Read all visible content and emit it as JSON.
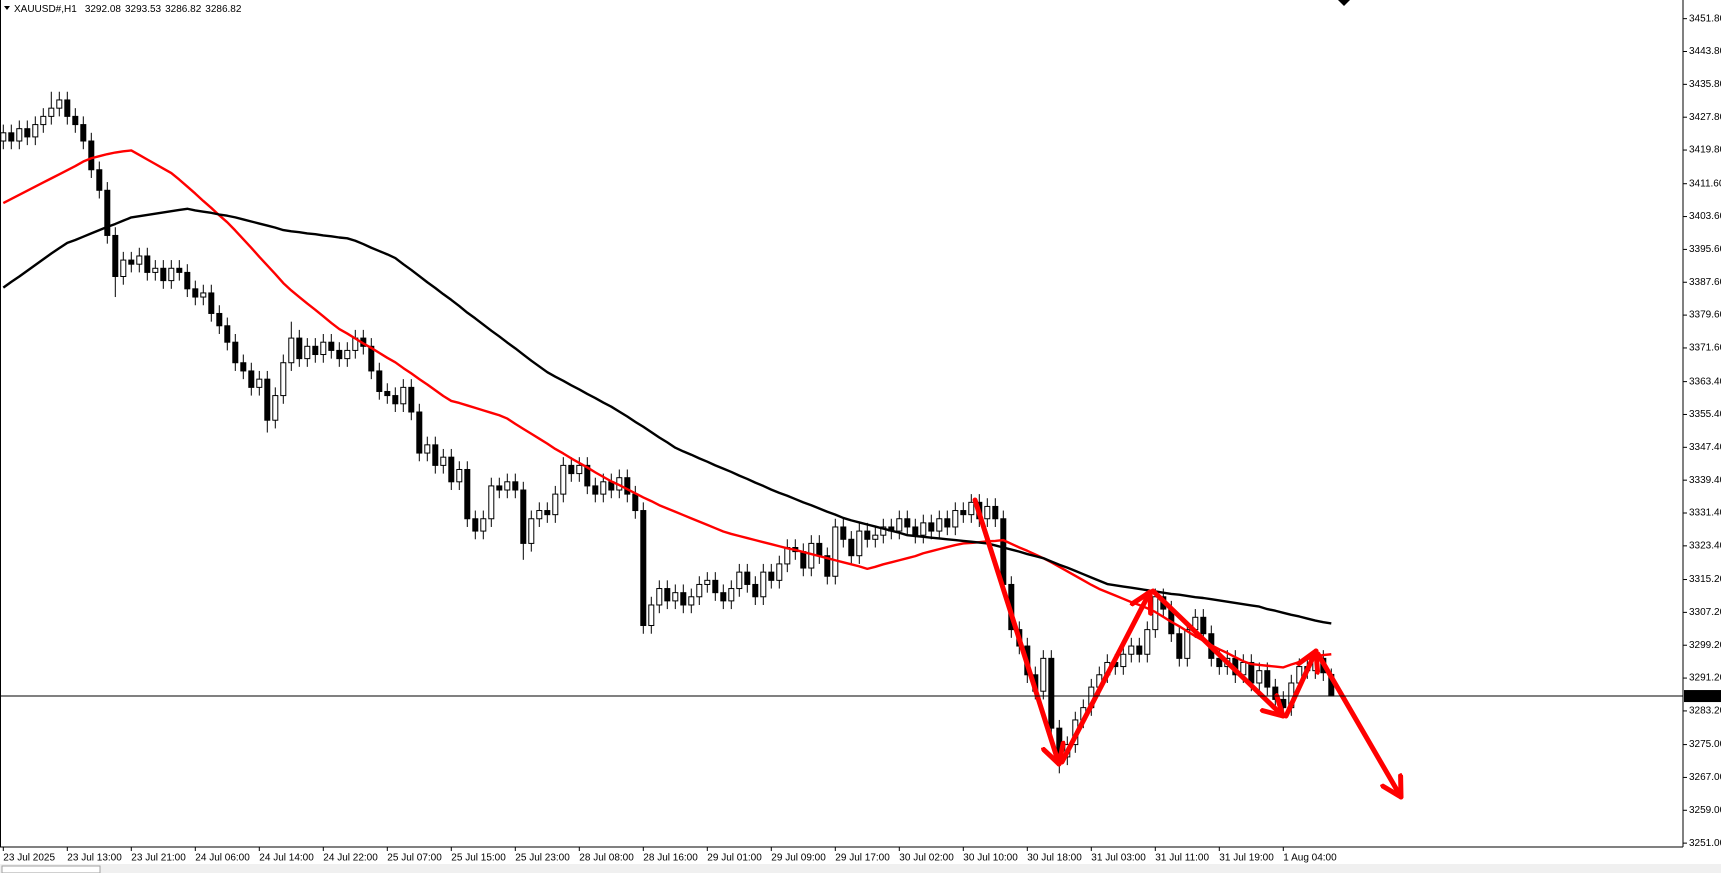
{
  "chart_data": {
    "type": "candlestick",
    "title": "XAUUSD#,H1",
    "header_values": [
      3292.08,
      3293.53,
      3286.82,
      3286.82
    ],
    "categories": [
      "23 Jul 2025",
      null,
      null,
      null,
      null,
      null,
      null,
      null,
      "23 Jul 13:00",
      null,
      null,
      null,
      null,
      null,
      null,
      null,
      "23 Jul 21:00",
      null,
      null,
      null,
      null,
      null,
      null,
      null,
      "24 Jul 06:00",
      null,
      null,
      null,
      null,
      null,
      null,
      null,
      "24 Jul 14:00",
      null,
      null,
      null,
      null,
      null,
      null,
      null,
      "24 Jul 22:00",
      null,
      null,
      null,
      null,
      null,
      null,
      null,
      "25 Jul 07:00",
      null,
      null,
      null,
      null,
      null,
      null,
      null,
      "25 Jul 15:00",
      null,
      null,
      null,
      null,
      null,
      null,
      null,
      "25 Jul 23:00",
      null,
      null,
      null,
      null,
      null,
      null,
      null,
      "28 Jul 08:00",
      null,
      null,
      null,
      null,
      null,
      null,
      null,
      "28 Jul 16:00",
      null,
      null,
      null,
      null,
      null,
      null,
      null,
      "29 Jul 01:00",
      null,
      null,
      null,
      null,
      null,
      null,
      null,
      "29 Jul 09:00",
      null,
      null,
      null,
      null,
      null,
      null,
      null,
      "29 Jul 17:00",
      null,
      null,
      null,
      null,
      null,
      null,
      null,
      "30 Jul 02:00",
      null,
      null,
      null,
      null,
      null,
      null,
      null,
      "30 Jul 10:00",
      null,
      null,
      null,
      null,
      null,
      null,
      null,
      "30 Jul 18:00",
      null,
      null,
      null,
      null,
      null,
      null,
      null,
      "31 Jul 03:00",
      null,
      null,
      null,
      null,
      null,
      null,
      null,
      "31 Jul 11:00",
      null,
      null,
      null,
      null,
      null,
      null,
      null,
      "31 Jul 19:00",
      null,
      null,
      null,
      null,
      null,
      null,
      null,
      "1 Aug 04:00",
      null,
      null,
      null,
      null,
      null,
      null
    ],
    "open": [
      3422,
      3424,
      3422,
      3425,
      3423,
      3426,
      3428,
      3430,
      3432,
      3428,
      3426,
      3422,
      3415,
      3410,
      3399,
      3389,
      3393,
      3392,
      3394,
      3390,
      3391,
      3388,
      3391,
      3390,
      3386,
      3384,
      3385,
      3380,
      3377,
      3373,
      3368,
      3366,
      3362,
      3364,
      3354,
      3360,
      3368,
      3374,
      3369,
      3372,
      3370,
      3373,
      3371,
      3369,
      3371,
      3374,
      3372,
      3366,
      3361,
      3360,
      3358,
      3362,
      3356,
      3346,
      3348,
      3343,
      3345,
      3339,
      3342,
      3330,
      3327,
      3330,
      3338,
      3337,
      3339,
      3337,
      3324,
      3330,
      3332,
      3331,
      3336,
      3343,
      3341,
      3343,
      3338,
      3336,
      3339,
      3337,
      3340,
      3336,
      3332,
      3304,
      3309,
      3313,
      3310,
      3312,
      3309,
      3311,
      3314,
      3315,
      3312,
      3310,
      3313,
      3317,
      3314,
      3311,
      3317,
      3315,
      3319,
      3323,
      3322,
      3318,
      3324,
      3321,
      3316,
      3328,
      3325,
      3321,
      3327,
      3325,
      3326,
      3328,
      3327,
      3330,
      3328,
      3326,
      3329,
      3327,
      3330,
      3328,
      3332,
      3331,
      3334,
      3330,
      3333,
      3330,
      3314,
      3303,
      3299,
      3292,
      3288,
      3296,
      3279,
      3272,
      3275,
      3281,
      3284,
      3289,
      3292,
      3295,
      3294,
      3297,
      3299,
      3297,
      3303,
      3311,
      3308,
      3302,
      3296,
      3303,
      3306,
      3302,
      3296,
      3294,
      3296,
      3292,
      3295,
      3290,
      3293,
      3289,
      3286,
      3284,
      3290,
      3294,
      3293,
      3296,
      3292.08
    ],
    "high": [
      3426,
      3426,
      3427,
      3427,
      3428,
      3430,
      3434,
      3434,
      3434,
      3430,
      3428,
      3424,
      3417,
      3412,
      3401,
      3395,
      3395,
      3396,
      3396,
      3393,
      3393,
      3393,
      3393,
      3392,
      3388,
      3387,
      3387,
      3382,
      3379,
      3375,
      3370,
      3368,
      3366,
      3366,
      3362,
      3370,
      3378,
      3376,
      3374,
      3374,
      3375,
      3375,
      3373,
      3373,
      3376,
      3376,
      3374,
      3368,
      3363,
      3362,
      3364,
      3364,
      3358,
      3350,
      3350,
      3347,
      3347,
      3344,
      3344,
      3332,
      3332,
      3340,
      3340,
      3341,
      3341,
      3339,
      3332,
      3334,
      3334,
      3338,
      3345,
      3345,
      3345,
      3345,
      3340,
      3341,
      3341,
      3342,
      3342,
      3338,
      3334,
      3311,
      3315,
      3315,
      3314,
      3314,
      3313,
      3316,
      3317,
      3317,
      3314,
      3315,
      3319,
      3319,
      3316,
      3319,
      3319,
      3321,
      3325,
      3325,
      3324,
      3326,
      3326,
      3323,
      3330,
      3330,
      3327,
      3329,
      3329,
      3328,
      3330,
      3330,
      3332,
      3332,
      3330,
      3331,
      3331,
      3332,
      3332,
      3334,
      3334,
      3336,
      3336,
      3335,
      3335,
      3332,
      3316,
      3305,
      3301,
      3294,
      3298,
      3298,
      3281,
      3277,
      3283,
      3286,
      3291,
      3294,
      3297,
      3297,
      3299,
      3301,
      3301,
      3305,
      3313,
      3313,
      3310,
      3304,
      3305,
      3308,
      3308,
      3304,
      3298,
      3298,
      3298,
      3297,
      3297,
      3295,
      3295,
      3291,
      3288,
      3292,
      3296,
      3296,
      3298,
      3298,
      3293.53
    ],
    "low": [
      3420,
      3420,
      3420,
      3421,
      3421,
      3424,
      3426,
      3428,
      3426,
      3424,
      3420,
      3413,
      3408,
      3397,
      3384,
      3387,
      3390,
      3390,
      3388,
      3388,
      3386,
      3386,
      3388,
      3384,
      3382,
      3382,
      3378,
      3375,
      3371,
      3366,
      3364,
      3360,
      3360,
      3351,
      3352,
      3358,
      3366,
      3367,
      3367,
      3368,
      3368,
      3369,
      3367,
      3367,
      3369,
      3370,
      3364,
      3359,
      3358,
      3356,
      3356,
      3354,
      3344,
      3344,
      3341,
      3341,
      3337,
      3337,
      3328,
      3325,
      3325,
      3328,
      3335,
      3335,
      3335,
      3320,
      3322,
      3328,
      3329,
      3329,
      3334,
      3339,
      3339,
      3336,
      3334,
      3334,
      3335,
      3335,
      3334,
      3330,
      3302,
      3302,
      3307,
      3308,
      3308,
      3307,
      3307,
      3309,
      3312,
      3310,
      3308,
      3308,
      3311,
      3312,
      3309,
      3309,
      3313,
      3313,
      3317,
      3320,
      3316,
      3316,
      3319,
      3314,
      3314,
      3323,
      3319,
      3319,
      3323,
      3323,
      3324,
      3325,
      3325,
      3326,
      3324,
      3324,
      3325,
      3325,
      3326,
      3326,
      3329,
      3329,
      3328,
      3328,
      3328,
      3312,
      3301,
      3297,
      3290,
      3286,
      3286,
      3277,
      3268,
      3270,
      3273,
      3279,
      3282,
      3287,
      3290,
      3292,
      3292,
      3295,
      3295,
      3295,
      3301,
      3306,
      3300,
      3294,
      3294,
      3301,
      3300,
      3294,
      3292,
      3292,
      3290,
      3290,
      3288,
      3288,
      3287,
      3284,
      3282,
      3282,
      3288,
      3291,
      3291,
      3290.5,
      3286.82
    ],
    "close": [
      3424,
      3422,
      3425,
      3423,
      3426,
      3428,
      3430,
      3432,
      3428,
      3426,
      3422,
      3415,
      3410,
      3399,
      3389,
      3393,
      3392,
      3394,
      3390,
      3391,
      3388,
      3391,
      3390,
      3386,
      3384,
      3385,
      3380,
      3377,
      3373,
      3368,
      3366,
      3362,
      3364,
      3354,
      3360,
      3368,
      3374,
      3369,
      3372,
      3370,
      3373,
      3371,
      3369,
      3371,
      3374,
      3372,
      3366,
      3361,
      3360,
      3358,
      3362,
      3356,
      3346,
      3348,
      3343,
      3345,
      3339,
      3342,
      3330,
      3327,
      3330,
      3338,
      3337,
      3339,
      3337,
      3324,
      3330,
      3332,
      3331,
      3336,
      3343,
      3341,
      3343,
      3338,
      3336,
      3339,
      3337,
      3340,
      3336,
      3332,
      3304,
      3309,
      3313,
      3310,
      3312,
      3309,
      3311,
      3314,
      3315,
      3312,
      3310,
      3313,
      3317,
      3314,
      3311,
      3317,
      3315,
      3319,
      3323,
      3322,
      3318,
      3324,
      3321,
      3316,
      3328,
      3325,
      3321,
      3327,
      3325,
      3326,
      3328,
      3327,
      3330,
      3328,
      3326,
      3329,
      3327,
      3330,
      3328,
      3332,
      3331,
      3334,
      3330,
      3333,
      3330,
      3314,
      3303,
      3299,
      3292,
      3288,
      3296,
      3279,
      3272,
      3275,
      3281,
      3284,
      3289,
      3292,
      3295,
      3294,
      3297,
      3299,
      3297,
      3303,
      3311,
      3308,
      3302,
      3296,
      3303,
      3306,
      3302,
      3296,
      3294,
      3296,
      3292,
      3295,
      3290,
      3293,
      3289,
      3286,
      3284,
      3290,
      3294,
      3293,
      3296,
      3292.5,
      3286.82
    ],
    "up_color": "#ffffff",
    "down_color": "#000000",
    "series": [
      {
        "color": "#ff0000",
        "values": [
          3406.9,
          3407.9,
          3408.9,
          3409.9,
          3410.9,
          3411.9,
          3412.9,
          3413.9,
          3414.9,
          3415.9,
          3417.0,
          3417.8,
          3418.3,
          3418.8,
          3419.2,
          3419.5,
          3419.7,
          3418.6,
          3417.5,
          3416.4,
          3415.3,
          3414.2,
          3412.6,
          3410.9,
          3409.2,
          3407.4,
          3405.7,
          3403.9,
          3402.2,
          3400.2,
          3398.1,
          3396.0,
          3393.8,
          3391.7,
          3389.6,
          3387.4,
          3385.6,
          3384.0,
          3382.4,
          3380.9,
          3379.3,
          3377.7,
          3376.2,
          3375.1,
          3373.9,
          3372.7,
          3371.6,
          3370.4,
          3369.2,
          3368.1,
          3366.7,
          3365.4,
          3364.0,
          3362.7,
          3361.3,
          3359.9,
          3358.7,
          3358.2,
          3357.6,
          3357.0,
          3356.4,
          3355.8,
          3355.2,
          3354.4,
          3353.1,
          3351.9,
          3350.7,
          3349.5,
          3348.3,
          3347.0,
          3345.9,
          3344.7,
          3343.6,
          3342.5,
          3341.3,
          3340.2,
          3339.1,
          3338.2,
          3337.2,
          3336.2,
          3335.2,
          3334.3,
          3333.3,
          3332.5,
          3331.7,
          3330.9,
          3330.1,
          3329.3,
          3328.5,
          3327.7,
          3326.9,
          3326.3,
          3325.8,
          3325.3,
          3324.8,
          3324.3,
          3323.8,
          3323.3,
          3322.8,
          3322.4,
          3321.9,
          3321.4,
          3320.9,
          3320.4,
          3319.9,
          3319.4,
          3318.9,
          3318.4,
          3317.8,
          3318.3,
          3318.9,
          3319.4,
          3319.9,
          3320.4,
          3320.9,
          3321.6,
          3322.1,
          3322.6,
          3323.1,
          3323.6,
          3324.0,
          3324.1,
          3324.3,
          3324.5,
          3324.6,
          3324.8,
          3323.9,
          3323.0,
          3322.2,
          3321.3,
          3320.4,
          3319.4,
          3318.3,
          3317.2,
          3316.1,
          3315.0,
          3313.9,
          3312.9,
          3312.1,
          3311.3,
          3310.5,
          3309.7,
          3309.0,
          3308.2,
          3307.3,
          3306.1,
          3304.9,
          3303.8,
          3302.6,
          3301.4,
          3300.3,
          3299.2,
          3298.2,
          3297.3,
          3296.3,
          3295.3,
          3294.6,
          3294.4,
          3294.2,
          3294.0,
          3293.8,
          3294.5,
          3295.1,
          3295.8,
          3296.5,
          3296.8,
          3297.0
        ]
      },
      {
        "color": "#000000",
        "values": [
          3386.3,
          3387.7,
          3389.0,
          3390.4,
          3391.8,
          3393.2,
          3394.6,
          3395.9,
          3397.2,
          3397.9,
          3398.7,
          3399.5,
          3400.3,
          3401.1,
          3401.8,
          3402.6,
          3403.4,
          3403.7,
          3404.0,
          3404.3,
          3404.6,
          3404.9,
          3405.2,
          3405.5,
          3405.1,
          3404.8,
          3404.5,
          3404.1,
          3403.8,
          3403.4,
          3402.9,
          3402.4,
          3401.9,
          3401.4,
          3400.9,
          3400.3,
          3400.0,
          3399.8,
          3399.5,
          3399.3,
          3399.0,
          3398.8,
          3398.5,
          3398.3,
          3397.7,
          3396.9,
          3396.0,
          3395.2,
          3394.4,
          3393.5,
          3392.0,
          3390.6,
          3389.1,
          3387.6,
          3386.2,
          3384.7,
          3383.3,
          3381.8,
          3380.2,
          3378.8,
          3377.3,
          3375.8,
          3374.4,
          3372.9,
          3371.5,
          3370.0,
          3368.5,
          3367.1,
          3365.7,
          3364.6,
          3363.6,
          3362.5,
          3361.5,
          3360.4,
          3359.4,
          3358.3,
          3357.3,
          3356.1,
          3354.9,
          3353.6,
          3352.4,
          3351.1,
          3349.8,
          3348.6,
          3347.3,
          3346.4,
          3345.6,
          3344.7,
          3343.9,
          3343.0,
          3342.2,
          3341.4,
          3340.5,
          3339.7,
          3338.8,
          3338.0,
          3337.1,
          3336.3,
          3335.6,
          3334.8,
          3334.0,
          3333.3,
          3332.5,
          3331.7,
          3331.0,
          3330.2,
          3329.6,
          3329.1,
          3328.6,
          3328.1,
          3327.6,
          3327.1,
          3326.6,
          3326.0,
          3325.8,
          3325.6,
          3325.4,
          3325.2,
          3325.0,
          3324.8,
          3324.6,
          3324.4,
          3324.2,
          3324.0,
          3323.5,
          3323.0,
          3322.5,
          3322.0,
          3321.4,
          3320.9,
          3320.4,
          3319.6,
          3318.8,
          3318.1,
          3317.3,
          3316.5,
          3315.7,
          3314.9,
          3314.1,
          3313.8,
          3313.5,
          3313.2,
          3312.9,
          3312.6,
          3312.3,
          3312.0,
          3311.7,
          3311.5,
          3311.2,
          3310.9,
          3310.7,
          3310.4,
          3310.1,
          3309.8,
          3309.5,
          3309.2,
          3308.9,
          3308.6,
          3308.0,
          3307.6,
          3307.1,
          3306.6,
          3306.2,
          3305.7,
          3305.2,
          3304.8,
          3304.5
        ]
      }
    ],
    "ylim": [
      3250.3,
      3456.1
    ],
    "yticks": [
      {
        "value": 3451.8,
        "label": "3451.80"
      },
      {
        "value": 3443.8,
        "label": "3443.80"
      },
      {
        "value": 3435.8,
        "label": "3435.80"
      },
      {
        "value": 3427.8,
        "label": "3427.80"
      },
      {
        "value": 3419.8,
        "label": "3419.80"
      },
      {
        "value": 3411.6,
        "label": "3411.60"
      },
      {
        "value": 3403.6,
        "label": "3403.60"
      },
      {
        "value": 3395.6,
        "label": "3395.60"
      },
      {
        "value": 3387.6,
        "label": "3387.60"
      },
      {
        "value": 3379.6,
        "label": "3379.60"
      },
      {
        "value": 3371.6,
        "label": "3371.60"
      },
      {
        "value": 3363.4,
        "label": "3363.40"
      },
      {
        "value": 3355.4,
        "label": "3355.40"
      },
      {
        "value": 3347.4,
        "label": "3347.40"
      },
      {
        "value": 3339.4,
        "label": "3339.40"
      },
      {
        "value": 3331.4,
        "label": "3331.40"
      },
      {
        "value": 3323.4,
        "label": "3323.40"
      },
      {
        "value": 3315.2,
        "label": "3315.20"
      },
      {
        "value": 3307.2,
        "label": "3307.20"
      },
      {
        "value": 3299.2,
        "label": "3299.20"
      },
      {
        "value": 3291.2,
        "label": "3291.20"
      },
      {
        "value": 3283.2,
        "label": "3283.20"
      },
      {
        "value": 3275,
        "label": "3275.00"
      },
      {
        "value": 3267,
        "label": "3267.00"
      },
      {
        "value": 3259,
        "label": "3259.00"
      },
      {
        "value": 3251,
        "label": "3251.00"
      }
    ],
    "current_price": 3286.82,
    "grid": false
  }
}
